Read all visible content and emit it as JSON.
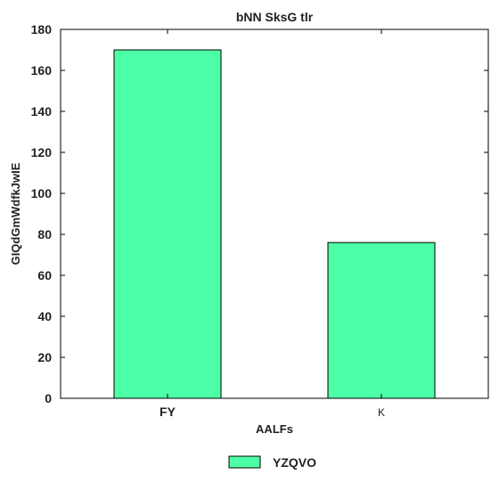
{
  "chart_data": {
    "type": "bar",
    "title": "bNN SksG tlr",
    "xlabel": "AALFs",
    "ylabel": "GIQdGmWdfkJwIE",
    "categories": [
      "FY",
      "K"
    ],
    "series": [
      {
        "name": "YZQVO",
        "values": [
          170,
          76
        ],
        "color": "#4dffa6"
      }
    ],
    "ylim": [
      0,
      180
    ],
    "yticks": [
      0,
      20,
      40,
      60,
      80,
      100,
      120,
      140,
      160,
      180
    ],
    "grid": false,
    "legend_position": "bottom-center"
  }
}
